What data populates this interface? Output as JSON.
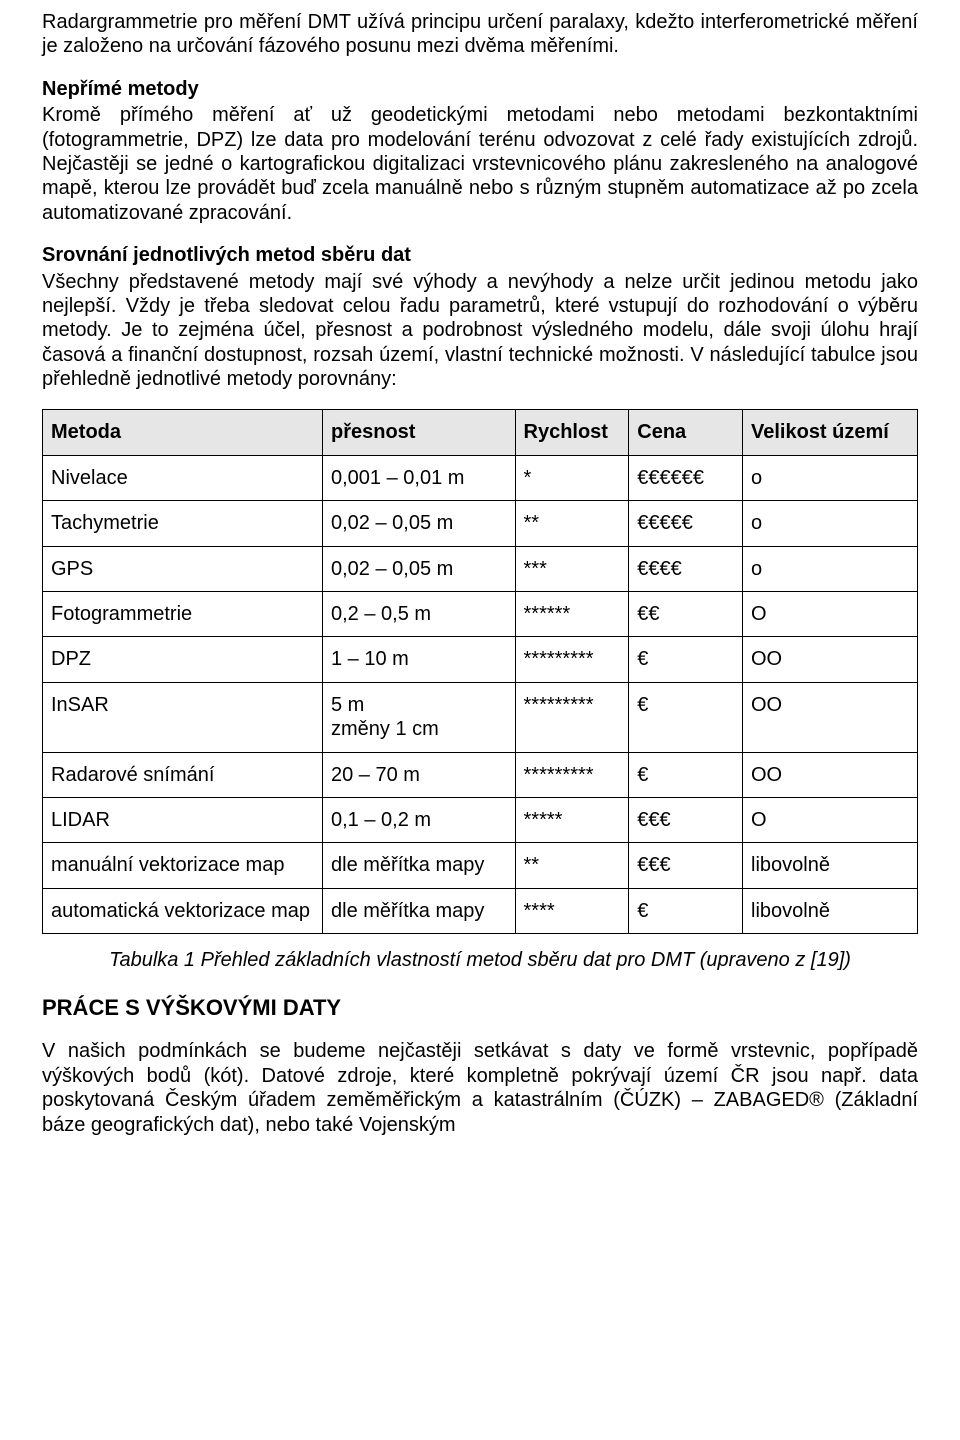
{
  "paragraphs": {
    "intro": "Radargrammetrie pro měření DMT užívá principu určení paralaxy, kdežto interferometrické měření je založeno na určování fázového posunu mezi dvěma měřeními.",
    "neprime_title": "Nepřímé metody",
    "neprime_body": "Kromě přímého měření ať už geodetickými metodami nebo metodami bezkontaktními (fotogrammetrie, DPZ) lze data pro modelování terénu odvozovat z celé řady existujících zdrojů. Nejčastěji se jedné o kartografickou digitalizaci vrstevnicového plánu zakresleného na analogové mapě, kterou lze provádět buď zcela manuálně nebo s různým stupněm automatizace až po zcela automatizované zpracování.",
    "srovnani_title": "Srovnání jednotlivých metod sběru dat",
    "srovnani_body": "Všechny představené metody mají své výhody a nevýhody a nelze určit jedinou metodu jako nejlepší. Vždy je třeba sledovat celou řadu parametrů, které vstupují do rozhodování o výběru metody. Je to zejména účel, přesnost a podrobnost výsledného modelu, dále svoji úlohu hrají časová a finanční dostupnost, rozsah území, vlastní technické možnosti. V následující tabulce jsou přehledně jednotlivé metody porovnány:"
  },
  "table": {
    "headers": {
      "method": "Metoda",
      "accuracy": "přesnost",
      "speed": "Rychlost",
      "cost": "Cena",
      "area": "Velikost území"
    },
    "rows": [
      {
        "method": "Nivelace",
        "accuracy": "0,001 – 0,01 m",
        "speed": "*",
        "cost": "€€€€€€",
        "area": "o"
      },
      {
        "method": "Tachymetrie",
        "accuracy": "0,02 – 0,05 m",
        "speed": "**",
        "cost": "€€€€€",
        "area": "o"
      },
      {
        "method": "GPS",
        "accuracy": "0,02 – 0,05 m",
        "speed": "***",
        "cost": "€€€€",
        "area": "o"
      },
      {
        "method": "Fotogrammetrie",
        "accuracy": "0,2 – 0,5 m",
        "speed": "******",
        "cost": "€€",
        "area": "O"
      },
      {
        "method": "DPZ",
        "accuracy": "1 – 10 m",
        "speed": "*********",
        "cost": "€",
        "area": "OO"
      },
      {
        "method": "InSAR",
        "accuracy": "5 m\nzměny 1 cm",
        "speed": "*********",
        "cost": "€",
        "area": "OO"
      },
      {
        "method": "Radarové snímání",
        "accuracy": "20 – 70 m",
        "speed": "*********",
        "cost": "€",
        "area": "OO"
      },
      {
        "method": "LIDAR",
        "accuracy": "0,1 – 0,2 m",
        "speed": "*****",
        "cost": "€€€",
        "area": "O"
      },
      {
        "method": "manuální vektorizace map",
        "accuracy": "dle měřítka mapy",
        "speed": "**",
        "cost": "€€€",
        "area": "libovolně"
      },
      {
        "method": "automatická vektorizace map",
        "accuracy": "dle měřítka mapy",
        "speed": "****",
        "cost": "€",
        "area": "libovolně"
      }
    ]
  },
  "caption": "Tabulka 1 Přehled základních vlastností metod sběru dat pro DMT (upraveno z [19])",
  "section2": {
    "title": "PRÁCE S VÝŠKOVÝMI DATY",
    "body": "V našich podmínkách se budeme nejčastěji setkávat s daty ve formě vrstevnic, popřípadě výškových bodů (kót). Datové zdroje, které kompletně pokrývají území ČR jsou např. data poskytovaná Českým úřadem zeměměřickým a katastrálním (ČÚZK) – ZABAGED® (Základní báze geografických dat), nebo také Vojenským"
  }
}
